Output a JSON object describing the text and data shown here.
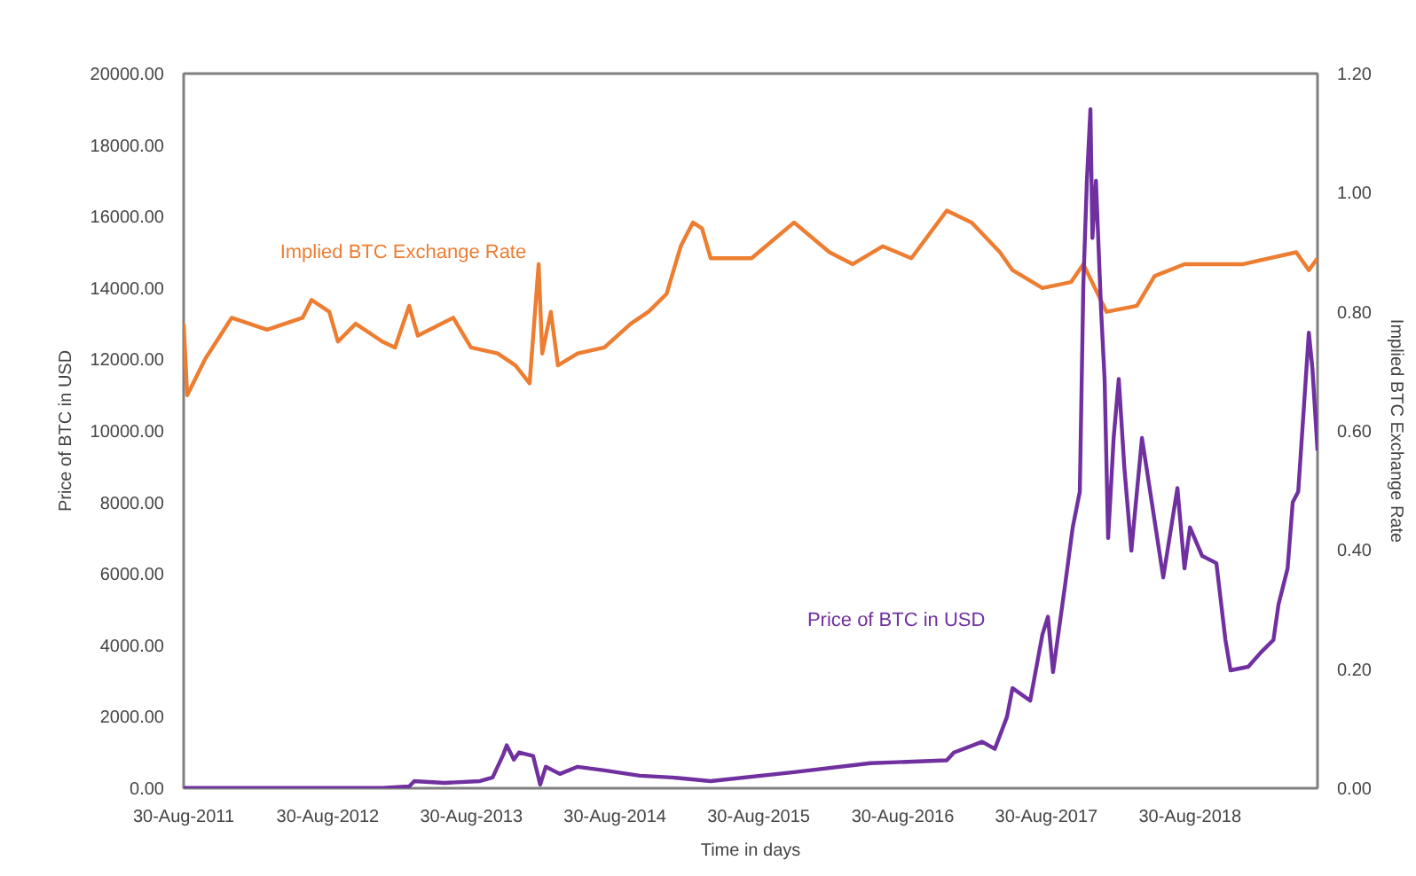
{
  "chart_data": {
    "type": "line",
    "xlabel": "Time in days",
    "ylabel": "Price of BTC in USD",
    "y2label": "Implied BTC Exchange Rate",
    "xlim": [
      "2011-08-30",
      "2019-07-20"
    ],
    "xticks": [
      {
        "value": "2011-08-30",
        "label": "30-Aug-2011"
      },
      {
        "value": "2012-08-30",
        "label": "30-Aug-2012"
      },
      {
        "value": "2013-08-30",
        "label": "30-Aug-2013"
      },
      {
        "value": "2014-08-30",
        "label": "30-Aug-2014"
      },
      {
        "value": "2015-08-30",
        "label": "30-Aug-2015"
      },
      {
        "value": "2016-08-30",
        "label": "30-Aug-2016"
      },
      {
        "value": "2017-08-30",
        "label": "30-Aug-2017"
      },
      {
        "value": "2018-08-30",
        "label": "30-Aug-2018"
      }
    ],
    "ylim": [
      0,
      20000
    ],
    "yticks": [
      {
        "value": 0,
        "label": "0.00"
      },
      {
        "value": 2000,
        "label": "2000.00"
      },
      {
        "value": 4000,
        "label": "4000.00"
      },
      {
        "value": 6000,
        "label": "6000.00"
      },
      {
        "value": 8000,
        "label": "8000.00"
      },
      {
        "value": 10000,
        "label": "10000.00"
      },
      {
        "value": 12000,
        "label": "12000.00"
      },
      {
        "value": 14000,
        "label": "14000.00"
      },
      {
        "value": 16000,
        "label": "16000.00"
      },
      {
        "value": 18000,
        "label": "18000.00"
      },
      {
        "value": 20000,
        "label": "20000.00"
      }
    ],
    "y2lim": [
      0,
      1.2
    ],
    "y2ticks": [
      {
        "value": 0,
        "label": "0.00"
      },
      {
        "value": 0.2,
        "label": "0.20"
      },
      {
        "value": 0.4,
        "label": "0.40"
      },
      {
        "value": 0.6,
        "label": "0.60"
      },
      {
        "value": 0.8,
        "label": "0.80"
      },
      {
        "value": 1.0,
        "label": "1.00"
      },
      {
        "value": 1.2,
        "label": "1.20"
      }
    ],
    "grid": false,
    "legend": false,
    "series": [
      {
        "name": "Implied BTC Exchange Rate",
        "color": "#ed7d31",
        "axis": "y2",
        "x": [
          "2011-08-30",
          "2011-09-08",
          "2011-10-23",
          "2011-12-30",
          "2012-03-29",
          "2012-06-27",
          "2012-07-20",
          "2012-09-03",
          "2012-09-25",
          "2012-11-09",
          "2013-01-16",
          "2013-02-17",
          "2013-03-25",
          "2013-04-16",
          "2013-07-15",
          "2013-08-29",
          "2013-11-05",
          "2013-12-20",
          "2014-01-25",
          "2014-02-17",
          "2014-02-26",
          "2014-03-20",
          "2014-04-07",
          "2014-05-27",
          "2014-08-03",
          "2014-10-09",
          "2014-11-23",
          "2015-01-08",
          "2015-02-13",
          "2015-03-16",
          "2015-04-08",
          "2015-04-30",
          "2015-08-12",
          "2015-11-28",
          "2016-02-26",
          "2016-04-25",
          "2016-07-10",
          "2016-09-21",
          "2016-12-20",
          "2017-02-21",
          "2017-05-04",
          "2017-06-05",
          "2017-08-20",
          "2017-11-01",
          "2017-12-02",
          "2018-01-30",
          "2018-04-17",
          "2018-06-01",
          "2018-08-16",
          "2018-10-27",
          "2019-01-12",
          "2019-05-27",
          "2019-06-28",
          "2019-07-20"
        ],
        "values": [
          0.78,
          0.66,
          0.72,
          0.79,
          0.77,
          0.79,
          0.82,
          0.8,
          0.75,
          0.78,
          0.75,
          0.74,
          0.81,
          0.76,
          0.79,
          0.74,
          0.73,
          0.71,
          0.68,
          0.88,
          0.73,
          0.8,
          0.71,
          0.73,
          0.74,
          0.78,
          0.8,
          0.83,
          0.91,
          0.95,
          0.94,
          0.89,
          0.89,
          0.95,
          0.9,
          0.88,
          0.91,
          0.89,
          0.97,
          0.95,
          0.9,
          0.87,
          0.84,
          0.85,
          0.88,
          0.8,
          0.81,
          0.86,
          0.88,
          0.88,
          0.88,
          0.9,
          0.87,
          0.89
        ]
      },
      {
        "name": "Price of BTC in USD",
        "color": "#7030a0",
        "x": [
          "2011-08-30",
          "2013-01-16",
          "2013-03-25",
          "2013-04-07",
          "2013-06-23",
          "2013-09-21",
          "2013-10-23",
          "2013-11-19",
          "2013-11-28",
          "2013-12-16",
          "2013-12-29",
          "2014-02-03",
          "2014-02-21",
          "2014-03-07",
          "2014-04-12",
          "2014-05-27",
          "2014-08-03",
          "2014-11-01",
          "2015-01-22",
          "2015-04-30",
          "2015-11-28",
          "2016-06-09",
          "2016-12-20",
          "2017-01-07",
          "2017-03-20",
          "2017-04-21",
          "2017-05-22",
          "2017-06-05",
          "2017-07-20",
          "2017-08-20",
          "2017-09-03",
          "2017-09-16",
          "2017-10-18",
          "2017-11-05",
          "2017-11-23",
          "2017-12-02",
          "2017-12-11",
          "2017-12-20",
          "2017-12-25",
          "2018-01-03",
          "2018-01-16",
          "2018-01-25",
          "2018-02-03",
          "2018-02-17",
          "2018-03-02",
          "2018-03-16",
          "2018-04-03",
          "2018-04-30",
          "2018-05-18",
          "2018-06-23",
          "2018-07-29",
          "2018-08-16",
          "2018-08-30",
          "2018-09-30",
          "2018-11-05",
          "2018-11-28",
          "2018-12-11",
          "2019-01-25",
          "2019-02-26",
          "2019-03-30",
          "2019-04-12",
          "2019-05-05",
          "2019-05-18",
          "2019-06-01",
          "2019-06-28",
          "2019-07-07",
          "2019-07-20"
        ],
        "values": [
          10,
          10,
          50,
          200,
          150,
          200,
          300,
          940,
          1200,
          800,
          1000,
          900,
          100,
          600,
          400,
          600,
          500,
          350,
          300,
          200,
          450,
          700,
          780,
          1000,
          1300,
          1100,
          2000,
          2800,
          2450,
          4300,
          4800,
          3250,
          5800,
          7300,
          8300,
          14100,
          17000,
          19000,
          15400,
          17000,
          13400,
          11450,
          7000,
          9800,
          11450,
          9000,
          6650,
          9800,
          8500,
          5900,
          8400,
          6150,
          7300,
          6500,
          6300,
          4150,
          3300,
          3400,
          3800,
          4150,
          5150,
          6150,
          8000,
          8300,
          12750,
          11750,
          9450
        ]
      }
    ]
  }
}
